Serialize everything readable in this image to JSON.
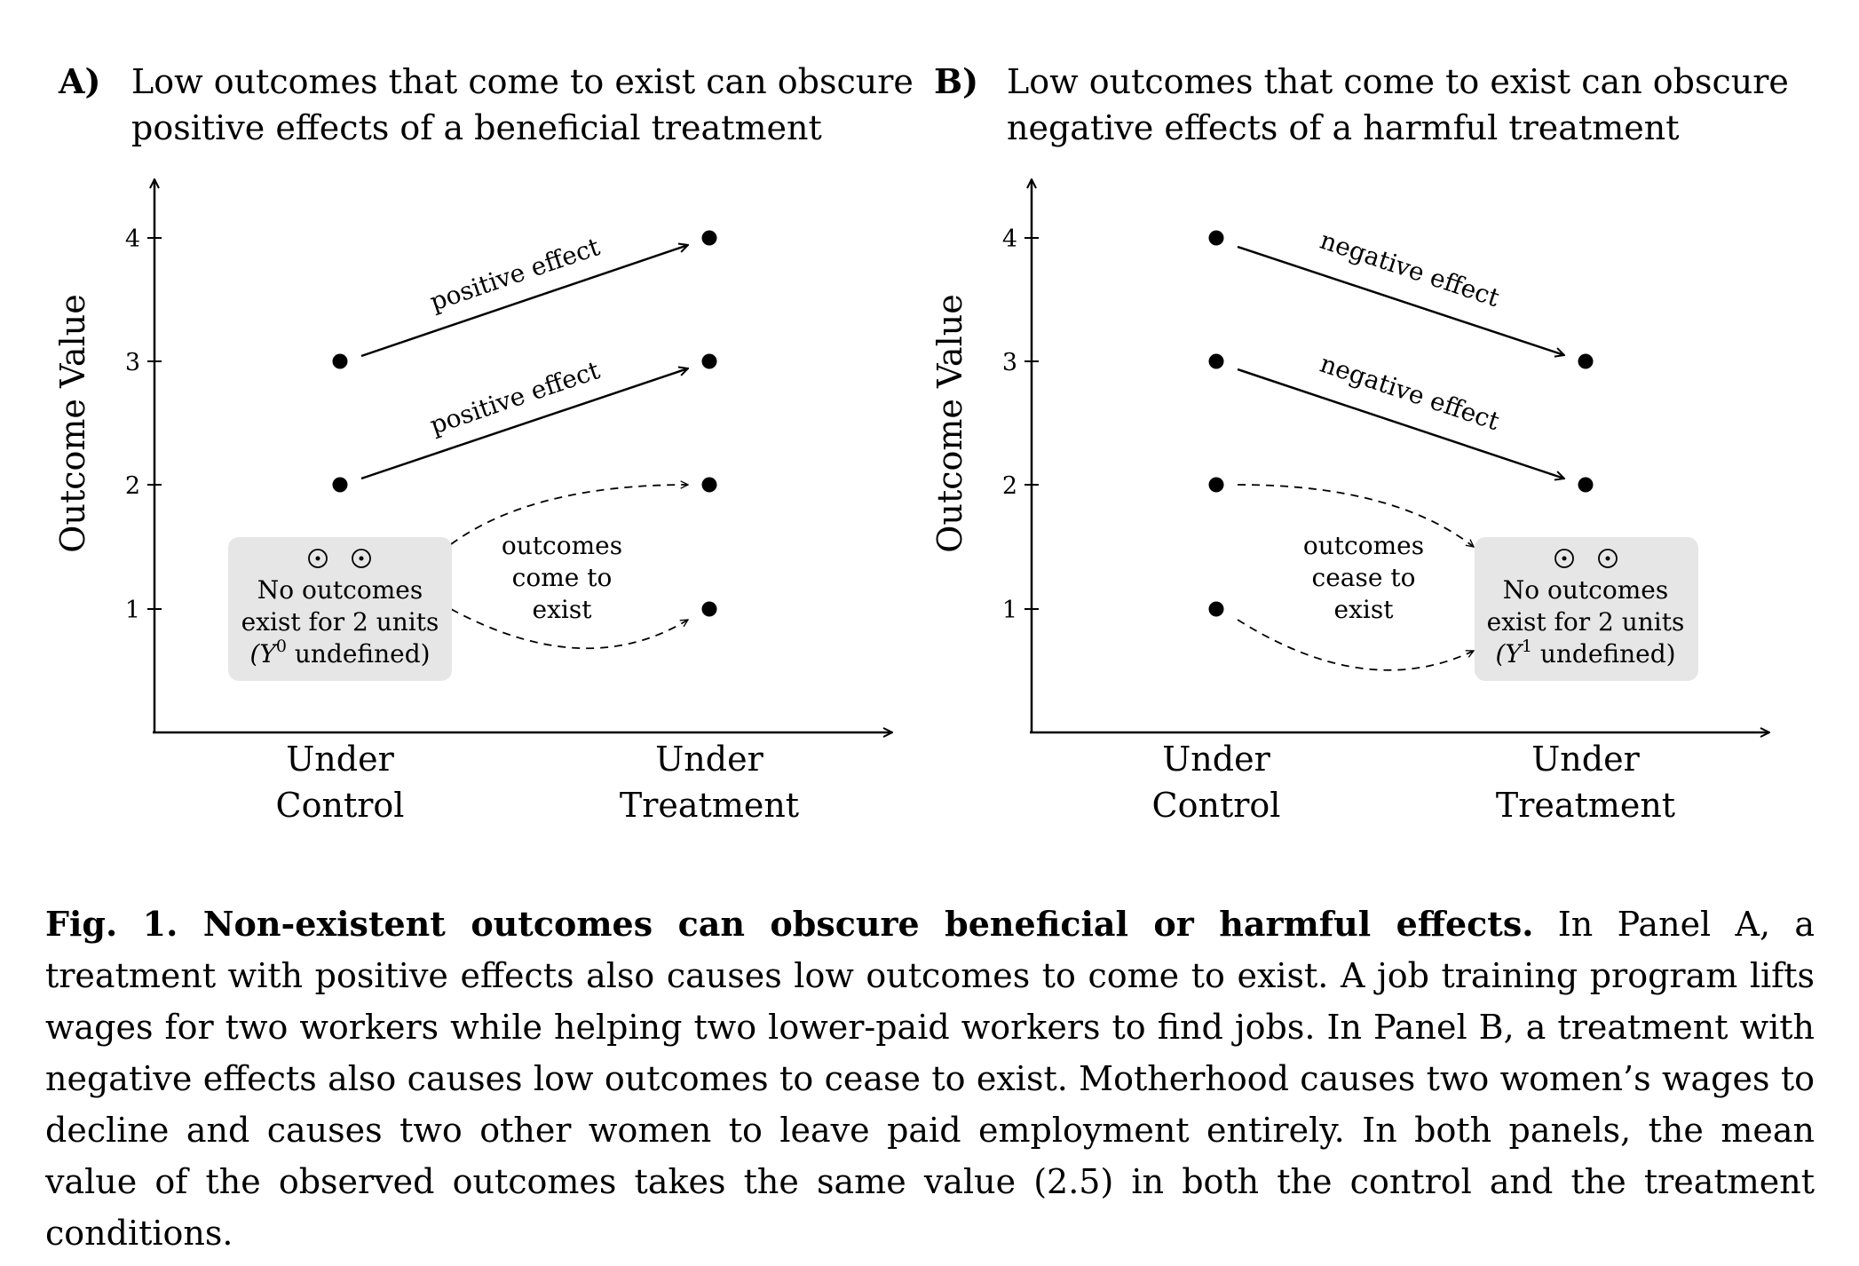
{
  "panels": [
    {
      "letter": "A)",
      "title": "Low outcomes that come to exist can obscure positive effects of a beneficial treatment",
      "ylabel": "Outcome Value",
      "ticks": [
        "1",
        "2",
        "3",
        "4"
      ],
      "xcat_left": [
        "Under",
        "Control"
      ],
      "xcat_right": [
        "Under",
        "Treatment"
      ],
      "arrow_label_1": "positive effect",
      "arrow_label_2": "positive effect",
      "dashed_label": [
        "outcomes",
        "come to",
        "exist"
      ],
      "box_lines": [
        "No outcomes",
        "exist for 2 units",
        "(Y",
        "0",
        " undefined)"
      ]
    },
    {
      "letter": "B)",
      "title": "Low outcomes that come to exist can obscure negative effects of a harmful treatment",
      "ylabel": "Outcome Value",
      "ticks": [
        "1",
        "2",
        "3",
        "4"
      ],
      "xcat_left": [
        "Under",
        "Control"
      ],
      "xcat_right": [
        "Under",
        "Treatment"
      ],
      "arrow_label_1": "negative effect",
      "arrow_label_2": "negative effect",
      "dashed_label": [
        "outcomes",
        "cease to",
        "exist"
      ],
      "box_lines": [
        "No outcomes",
        "exist for 2 units",
        "(Y",
        "1",
        " undefined)"
      ]
    }
  ],
  "colors": {
    "box_fill": "#e6e6e6",
    "ink": "#000000"
  },
  "caption": {
    "lead": "Fig. 1. Non-existent outcomes can obscure beneficial or harmful effects.",
    "text": " In Panel A, a treatment with positive effects also causes low outcomes to come to exist. A job training program lifts wages for two workers while helping two lower-paid workers to find jobs. In Panel B, a treatment with negative effects also causes low outcomes to cease to exist. Motherhood causes two women’s wages to decline and causes two other women to leave paid employment entirely. In both panels, the mean value of the observed outcomes takes the same value (2.5) in both the control and the treatment conditions."
  }
}
